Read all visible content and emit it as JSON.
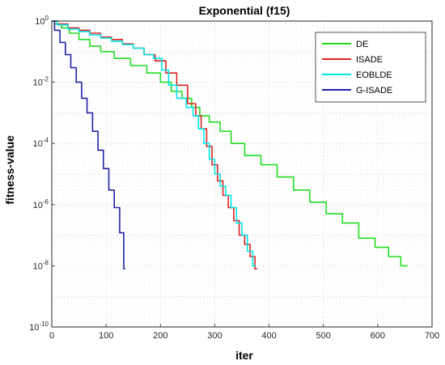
{
  "chart_data": {
    "type": "line",
    "title": "Exponential (f15)",
    "xlabel": "iter",
    "ylabel": "fitness-value",
    "xlim": [
      0,
      700
    ],
    "ylim": [
      1e-10,
      1
    ],
    "yscale": "log",
    "grid": "dotted",
    "legend_position": "top-right",
    "xticks": [
      "0",
      "100",
      "200",
      "300",
      "400",
      "500",
      "600",
      "700"
    ],
    "yticks": [
      {
        "base": "10",
        "exp": "0"
      },
      {
        "base": "10",
        "exp": "-2"
      },
      {
        "base": "10",
        "exp": "-4"
      },
      {
        "base": "10",
        "exp": "-6"
      },
      {
        "base": "10",
        "exp": "-8"
      },
      {
        "base": "10",
        "exp": "-10"
      }
    ],
    "series": [
      {
        "name": "DE",
        "color": "#22dd22",
        "points": [
          [
            0,
            1
          ],
          [
            10,
            0.8
          ],
          [
            25,
            0.6
          ],
          [
            40,
            0.4
          ],
          [
            60,
            0.25
          ],
          [
            80,
            0.15
          ],
          [
            100,
            0.1
          ],
          [
            130,
            0.06
          ],
          [
            160,
            0.035
          ],
          [
            190,
            0.02
          ],
          [
            210,
            0.01
          ],
          [
            230,
            0.005
          ],
          [
            250,
            0.003
          ],
          [
            265,
            0.0015
          ],
          [
            280,
            0.0008
          ],
          [
            300,
            0.0005
          ],
          [
            320,
            0.00025
          ],
          [
            340,
            0.0001
          ],
          [
            370,
            4e-05
          ],
          [
            400,
            2e-05
          ],
          [
            430,
            8e-06
          ],
          [
            460,
            3e-06
          ],
          [
            490,
            1.2e-06
          ],
          [
            520,
            5e-07
          ],
          [
            550,
            2.5e-07
          ],
          [
            580,
            8e-08
          ],
          [
            610,
            4e-08
          ],
          [
            630,
            2e-08
          ],
          [
            655,
            1e-08
          ]
        ]
      },
      {
        "name": "ISADE",
        "color": "#dd2222",
        "points": [
          [
            0,
            1
          ],
          [
            20,
            0.8
          ],
          [
            40,
            0.6
          ],
          [
            60,
            0.5
          ],
          [
            80,
            0.4
          ],
          [
            100,
            0.3
          ],
          [
            120,
            0.25
          ],
          [
            140,
            0.18
          ],
          [
            160,
            0.13
          ],
          [
            180,
            0.08
          ],
          [
            200,
            0.05
          ],
          [
            220,
            0.02
          ],
          [
            240,
            0.008
          ],
          [
            260,
            0.002
          ],
          [
            270,
            0.0008
          ],
          [
            280,
            0.0003
          ],
          [
            290,
            8e-05
          ],
          [
            300,
            2e-05
          ],
          [
            310,
            6e-06
          ],
          [
            320,
            2e-06
          ],
          [
            330,
            8e-07
          ],
          [
            340,
            3e-07
          ],
          [
            350,
            1e-07
          ],
          [
            360,
            5e-08
          ],
          [
            370,
            2e-08
          ],
          [
            378,
            8e-09
          ]
        ]
      },
      {
        "name": "EOBLDE",
        "color": "#00e6e6",
        "points": [
          [
            0,
            1
          ],
          [
            20,
            0.75
          ],
          [
            40,
            0.55
          ],
          [
            60,
            0.45
          ],
          [
            80,
            0.35
          ],
          [
            100,
            0.28
          ],
          [
            120,
            0.22
          ],
          [
            140,
            0.17
          ],
          [
            160,
            0.13
          ],
          [
            180,
            0.08
          ],
          [
            195,
            0.06
          ],
          [
            210,
            0.025
          ],
          [
            220,
            0.008
          ],
          [
            240,
            0.003
          ],
          [
            255,
            0.0015
          ],
          [
            265,
            0.0008
          ],
          [
            275,
            0.0003
          ],
          [
            285,
            0.0001
          ],
          [
            295,
            3e-05
          ],
          [
            305,
            1e-05
          ],
          [
            315,
            4e-06
          ],
          [
            325,
            2e-06
          ],
          [
            335,
            8e-07
          ],
          [
            345,
            2.5e-07
          ],
          [
            355,
            1e-07
          ],
          [
            365,
            3e-08
          ],
          [
            375,
            1e-08
          ]
        ]
      },
      {
        "name": "G-ISADE",
        "color": "#2222aa",
        "points": [
          [
            0,
            1
          ],
          [
            10,
            0.5
          ],
          [
            20,
            0.2
          ],
          [
            30,
            0.08
          ],
          [
            40,
            0.03
          ],
          [
            50,
            0.01
          ],
          [
            60,
            0.003
          ],
          [
            70,
            0.001
          ],
          [
            80,
            0.00025
          ],
          [
            90,
            6e-05
          ],
          [
            100,
            1.5e-05
          ],
          [
            110,
            3e-06
          ],
          [
            120,
            8e-07
          ],
          [
            130,
            1.2e-07
          ],
          [
            135,
            8e-09
          ]
        ]
      }
    ]
  }
}
